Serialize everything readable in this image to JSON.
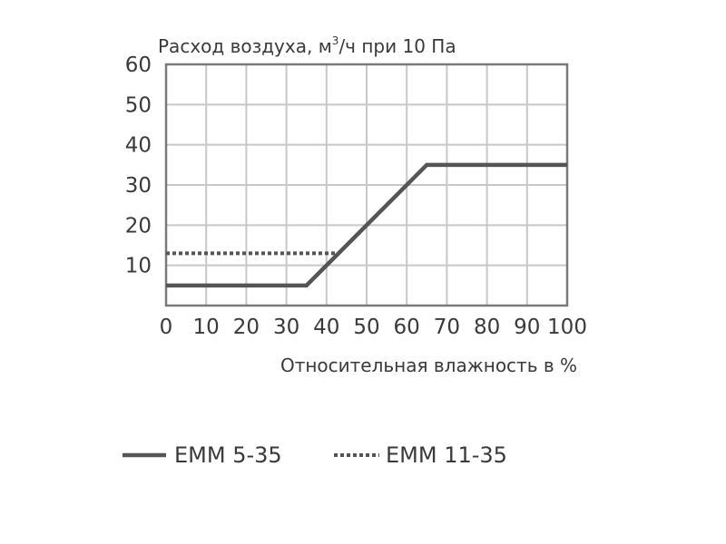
{
  "chart_data": {
    "type": "line",
    "ylabel_parts": {
      "before": "Расход воздуха, м",
      "sup": "3",
      "after": "/ч при 10 Па"
    },
    "xlabel": "Относительная влажность в %",
    "x_ticks": [
      "0",
      "10",
      "20",
      "30",
      "40",
      "50",
      "60",
      "70",
      "80",
      "90",
      "100"
    ],
    "y_ticks": [
      "10",
      "20",
      "30",
      "40",
      "50",
      "60"
    ],
    "xlim": [
      0,
      100
    ],
    "ylim": [
      0,
      60
    ],
    "grid": true,
    "legend_position": "bottom",
    "series": [
      {
        "name": "EMM 5-35",
        "style": "solid",
        "color": "#555555",
        "points": [
          [
            0,
            5
          ],
          [
            35,
            5
          ],
          [
            65,
            35
          ],
          [
            100,
            35
          ]
        ]
      },
      {
        "name": "EMM 11-35",
        "style": "dotted",
        "color": "#555555",
        "points": [
          [
            0,
            13
          ],
          [
            43,
            13
          ]
        ]
      }
    ]
  }
}
